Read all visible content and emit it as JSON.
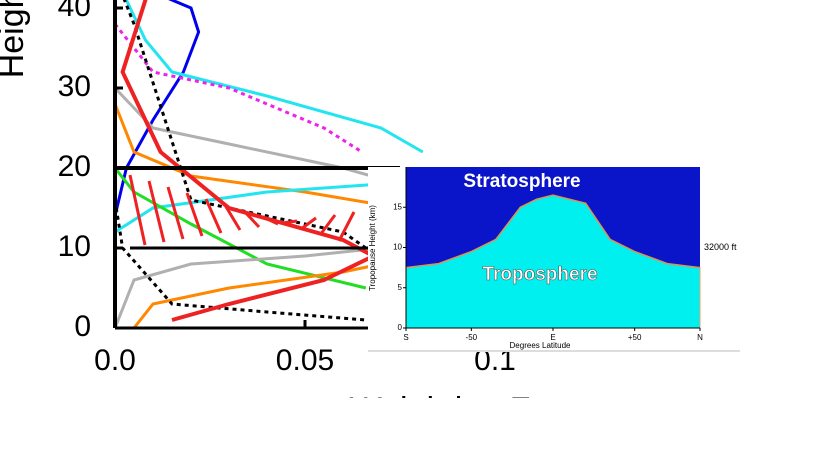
{
  "chart_data": [
    {
      "type": "line",
      "y_label": "Height",
      "x_label": "Weighting F",
      "xlim": [
        0,
        0.11
      ],
      "ylim": [
        0,
        42
      ],
      "xticks": [
        {
          "value": 0,
          "label": "0.0"
        },
        0.05,
        0.1
      ],
      "yticks": [
        0,
        10,
        20,
        30,
        40
      ],
      "series": [
        {
          "color": "#0000ee",
          "dash": false,
          "x": [
            0,
            0.02,
            0.022,
            0.018,
            0.01,
            0.003,
            0
          ],
          "values": [
            44,
            40,
            37,
            32,
            26,
            20,
            14
          ]
        },
        {
          "color": "#22e5f0",
          "dash": false,
          "x": [
            0,
            0.008,
            0.015,
            0.04,
            0.07,
            0.081
          ],
          "values": [
            44,
            36,
            32,
            29,
            25,
            22
          ]
        },
        {
          "color": "#ee22ee",
          "dash": true,
          "x": [
            0,
            0.01,
            0.03,
            0.055,
            0.065
          ],
          "values": [
            38,
            32,
            30,
            25,
            22
          ]
        },
        {
          "color": "#b0b0b0",
          "dash": false,
          "x": [
            0,
            0.01,
            0.03,
            0.06,
            0.075
          ],
          "values": [
            30,
            25,
            23,
            20,
            18
          ]
        },
        {
          "color": "#ff8800",
          "dash": false,
          "x": [
            0,
            0.005,
            0.02,
            0.05,
            0.075
          ],
          "values": [
            28,
            22,
            19,
            17,
            15
          ]
        },
        {
          "color": "#22e5f0",
          "dash": false,
          "x": [
            0,
            0.01,
            0.04,
            0.07
          ],
          "values": [
            12,
            15,
            17,
            18
          ]
        },
        {
          "color": "#000000",
          "dash": true,
          "x": [
            0,
            0.005,
            0.02,
            0.06,
            0.066
          ],
          "values": [
            44,
            38,
            16,
            12,
            10
          ]
        },
        {
          "color": "#22dd22",
          "dash": false,
          "x": [
            0,
            0.005,
            0.02,
            0.04,
            0.066
          ],
          "values": [
            20,
            17,
            13,
            8,
            5
          ]
        },
        {
          "color": "#b0b0b0",
          "dash": false,
          "x": [
            0,
            0.005,
            0.02,
            0.05,
            0.07
          ],
          "values": [
            0,
            6,
            8,
            9,
            10
          ]
        },
        {
          "color": "#ff8800",
          "dash": false,
          "x": [
            0.005,
            0.01,
            0.03,
            0.06,
            0.07
          ],
          "values": [
            0,
            3,
            5,
            7,
            8
          ]
        },
        {
          "color": "#000000",
          "dash": true,
          "x": [
            0,
            0.002,
            0.015,
            0.04,
            0.066
          ],
          "values": [
            16,
            10,
            3,
            2,
            1
          ]
        },
        {
          "color": "#ee2222",
          "dash": false,
          "x": [
            0.015,
            0.03,
            0.055,
            0.068,
            0.06,
            0.03,
            0.012,
            0.002,
            0.01
          ],
          "values": [
            1,
            3,
            6,
            9,
            11,
            15,
            22,
            32,
            44
          ]
        }
      ]
    },
    {
      "type": "area",
      "labels": [
        "Stratosphere",
        "Troposphere"
      ],
      "y_label": "Tropopause Height (km)",
      "x_label": "Degrees Latitude",
      "annotation": "32000 ft",
      "color": "#00f0f0",
      "background": "#0a14c8",
      "x": [
        -90,
        -70,
        -50,
        -35,
        -20,
        -10,
        0,
        10,
        20,
        35,
        50,
        70,
        90
      ],
      "values": [
        7.5,
        8,
        9.5,
        11,
        15,
        16,
        16.5,
        16,
        15.5,
        11,
        9.5,
        8,
        7.5
      ],
      "xlim": [
        -90,
        90
      ],
      "ylim": [
        0,
        20
      ],
      "xticks": [
        {
          "value": -90,
          "label": "S"
        },
        -50,
        {
          "value": 0,
          "label": "E"
        },
        {
          "value": 50,
          "label": "+50"
        },
        {
          "value": 90,
          "label": "N"
        }
      ],
      "yticks": [
        0,
        5,
        10,
        15
      ]
    }
  ]
}
